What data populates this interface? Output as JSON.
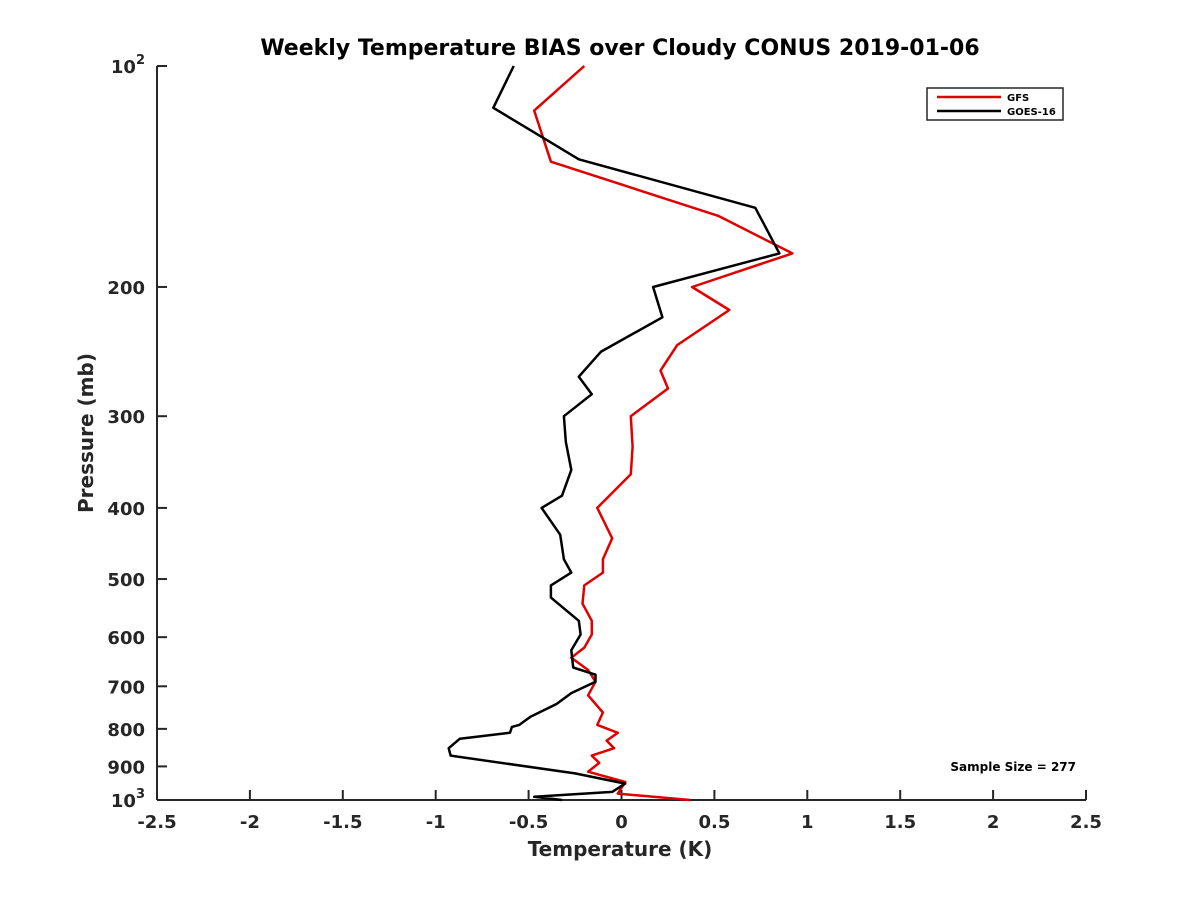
{
  "chart_data": {
    "type": "line",
    "title": "Weekly Temperature BIAS over Cloudy CONUS 2019-01-06",
    "xlabel": "Temperature (K)",
    "ylabel": "Pressure (mb)",
    "xlim": [
      -2.5,
      2.5
    ],
    "ylim": [
      1000,
      100
    ],
    "y_scale": "log",
    "y_reversed": true,
    "grid": false,
    "legend_position": "top-right",
    "x_ticks": [
      "-2.5",
      "-2",
      "-1.5",
      "-1",
      "-0.5",
      "0",
      "0.5",
      "1",
      "1.5",
      "2",
      "2.5"
    ],
    "x_tick_values": [
      -2.5,
      -2,
      -1.5,
      -1,
      -0.5,
      0,
      0.5,
      1,
      1.5,
      2,
      2.5
    ],
    "y_ticks": [
      {
        "value": 100,
        "base": "10",
        "exp": "2"
      },
      {
        "value": 200,
        "label": "200"
      },
      {
        "value": 300,
        "label": "300"
      },
      {
        "value": 400,
        "label": "400"
      },
      {
        "value": 500,
        "label": "500"
      },
      {
        "value": 600,
        "label": "600"
      },
      {
        "value": 700,
        "label": "700"
      },
      {
        "value": 800,
        "label": "800"
      },
      {
        "value": 900,
        "label": "900"
      },
      {
        "value": 1000,
        "base": "10",
        "exp": "3"
      }
    ],
    "annotation": "Sample Size = 277",
    "series": [
      {
        "name": "GFS",
        "color": "#e00000",
        "points": [
          [
            -0.2,
            100
          ],
          [
            -0.47,
            115
          ],
          [
            -0.38,
            135
          ],
          [
            0.52,
            160
          ],
          [
            0.92,
            180
          ],
          [
            0.38,
            200
          ],
          [
            0.58,
            215
          ],
          [
            0.3,
            240
          ],
          [
            0.21,
            260
          ],
          [
            0.25,
            275
          ],
          [
            0.05,
            300
          ],
          [
            0.06,
            330
          ],
          [
            0.05,
            360
          ],
          [
            -0.13,
            400
          ],
          [
            -0.05,
            440
          ],
          [
            -0.1,
            470
          ],
          [
            -0.1,
            490
          ],
          [
            -0.2,
            510
          ],
          [
            -0.21,
            540
          ],
          [
            -0.16,
            570
          ],
          [
            -0.16,
            595
          ],
          [
            -0.2,
            620
          ],
          [
            -0.27,
            640
          ],
          [
            -0.18,
            665
          ],
          [
            -0.14,
            690
          ],
          [
            -0.18,
            720
          ],
          [
            -0.1,
            760
          ],
          [
            -0.13,
            790
          ],
          [
            -0.02,
            810
          ],
          [
            -0.08,
            830
          ],
          [
            -0.04,
            850
          ],
          [
            -0.16,
            870
          ],
          [
            -0.12,
            890
          ],
          [
            -0.18,
            915
          ],
          [
            0.02,
            945
          ],
          [
            -0.02,
            980
          ],
          [
            0.37,
            1000
          ]
        ]
      },
      {
        "name": "GOES-16",
        "color": "#000000",
        "points": [
          [
            -0.58,
            100
          ],
          [
            -0.69,
            114
          ],
          [
            -0.23,
            134
          ],
          [
            0.72,
            156
          ],
          [
            0.85,
            180
          ],
          [
            0.17,
            200
          ],
          [
            0.22,
            220
          ],
          [
            -0.11,
            245
          ],
          [
            -0.23,
            265
          ],
          [
            -0.16,
            280
          ],
          [
            -0.31,
            300
          ],
          [
            -0.3,
            325
          ],
          [
            -0.27,
            355
          ],
          [
            -0.32,
            385
          ],
          [
            -0.43,
            400
          ],
          [
            -0.33,
            435
          ],
          [
            -0.31,
            470
          ],
          [
            -0.27,
            490
          ],
          [
            -0.38,
            510
          ],
          [
            -0.38,
            530
          ],
          [
            -0.23,
            570
          ],
          [
            -0.22,
            595
          ],
          [
            -0.27,
            625
          ],
          [
            -0.26,
            660
          ],
          [
            -0.14,
            675
          ],
          [
            -0.14,
            690
          ],
          [
            -0.27,
            715
          ],
          [
            -0.35,
            740
          ],
          [
            -0.49,
            770
          ],
          [
            -0.55,
            790
          ],
          [
            -0.59,
            795
          ],
          [
            -0.6,
            810
          ],
          [
            -0.87,
            825
          ],
          [
            -0.93,
            850
          ],
          [
            -0.92,
            870
          ],
          [
            -0.25,
            920
          ],
          [
            0.02,
            950
          ],
          [
            -0.05,
            975
          ],
          [
            -0.47,
            990
          ],
          [
            -0.32,
            1000
          ]
        ]
      }
    ]
  }
}
